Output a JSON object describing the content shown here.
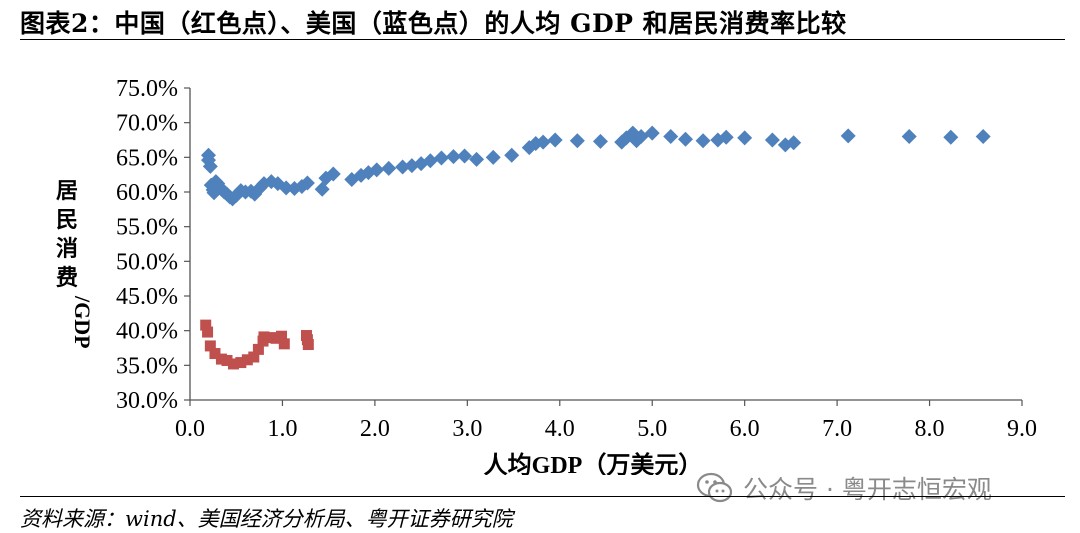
{
  "title": "图表2：中国（红色点）、美国（蓝色点）的人均 GDP 和居民消费率比较",
  "source": "资料来源：wind、美国经济分析局、粤开证券研究院",
  "watermark": {
    "text": "公众号 · 粤开志恒宏观",
    "icon": "wechat-logo-icon"
  },
  "colors": {
    "china": "#c0504d",
    "usa": "#4f81bd"
  },
  "chart_data": {
    "type": "scatter",
    "xlabel": "人均GDP（万美元）",
    "ylabel": "居民消费/GDP",
    "xlim": [
      0,
      9
    ],
    "ylim": [
      30,
      75
    ],
    "x_ticks": [
      "0.0",
      "1.0",
      "2.0",
      "3.0",
      "4.0",
      "5.0",
      "6.0",
      "7.0",
      "8.0",
      "9.0"
    ],
    "y_ticks": [
      "30.0%",
      "35.0%",
      "40.0%",
      "45.0%",
      "50.0%",
      "55.0%",
      "60.0%",
      "65.0%",
      "70.0%",
      "75.0%"
    ],
    "grid": false,
    "legend": "none",
    "series": [
      {
        "marker": "square",
        "color": "#c0504d",
        "points": [
          [
            0.17,
            40.8
          ],
          [
            0.19,
            39.8
          ],
          [
            0.22,
            37.8
          ],
          [
            0.27,
            36.7
          ],
          [
            0.34,
            35.9
          ],
          [
            0.4,
            35.7
          ],
          [
            0.47,
            35.2
          ],
          [
            0.55,
            35.4
          ],
          [
            0.62,
            35.8
          ],
          [
            0.69,
            36.2
          ],
          [
            0.74,
            37.3
          ],
          [
            0.79,
            38.5
          ],
          [
            0.8,
            39.1
          ],
          [
            0.87,
            39.0
          ],
          [
            0.93,
            38.9
          ],
          [
            0.99,
            39.2
          ],
          [
            1.02,
            38.1
          ],
          [
            1.26,
            39.3
          ],
          [
            1.27,
            38.7
          ],
          [
            1.28,
            38.0
          ]
        ]
      },
      {
        "marker": "diamond",
        "color": "#4f81bd",
        "points": [
          [
            0.2,
            65.3
          ],
          [
            0.2,
            64.6
          ],
          [
            0.22,
            63.7
          ],
          [
            0.23,
            61.0
          ],
          [
            0.25,
            60.3
          ],
          [
            0.26,
            59.9
          ],
          [
            0.28,
            61.5
          ],
          [
            0.3,
            61.2
          ],
          [
            0.32,
            60.7
          ],
          [
            0.34,
            60.4
          ],
          [
            0.37,
            60.0
          ],
          [
            0.4,
            59.7
          ],
          [
            0.43,
            59.3
          ],
          [
            0.46,
            59.0
          ],
          [
            0.5,
            59.5
          ],
          [
            0.55,
            60.2
          ],
          [
            0.6,
            60.0
          ],
          [
            0.66,
            60.1
          ],
          [
            0.7,
            59.7
          ],
          [
            0.75,
            60.5
          ],
          [
            0.8,
            61.2
          ],
          [
            0.88,
            61.5
          ],
          [
            0.95,
            61.2
          ],
          [
            1.04,
            60.6
          ],
          [
            1.13,
            60.5
          ],
          [
            1.21,
            60.8
          ],
          [
            1.27,
            61.3
          ],
          [
            1.43,
            60.4
          ],
          [
            1.47,
            62.0
          ],
          [
            1.55,
            62.6
          ],
          [
            1.75,
            61.8
          ],
          [
            1.85,
            62.4
          ],
          [
            1.93,
            62.8
          ],
          [
            2.02,
            63.2
          ],
          [
            2.15,
            63.4
          ],
          [
            2.3,
            63.6
          ],
          [
            2.4,
            63.8
          ],
          [
            2.5,
            64.1
          ],
          [
            2.6,
            64.5
          ],
          [
            2.72,
            64.9
          ],
          [
            2.85,
            65.1
          ],
          [
            2.97,
            65.2
          ],
          [
            3.1,
            64.7
          ],
          [
            3.28,
            65.0
          ],
          [
            3.48,
            65.3
          ],
          [
            3.67,
            66.4
          ],
          [
            3.74,
            67.0
          ],
          [
            3.82,
            67.2
          ],
          [
            3.95,
            67.5
          ],
          [
            4.19,
            67.4
          ],
          [
            4.44,
            67.3
          ],
          [
            4.67,
            67.2
          ],
          [
            4.72,
            67.8
          ],
          [
            4.79,
            68.5
          ],
          [
            4.83,
            67.4
          ],
          [
            4.88,
            68.0
          ],
          [
            5.0,
            68.5
          ],
          [
            5.2,
            68.0
          ],
          [
            5.36,
            67.6
          ],
          [
            5.55,
            67.4
          ],
          [
            5.71,
            67.5
          ],
          [
            5.8,
            67.9
          ],
          [
            6.0,
            67.8
          ],
          [
            6.3,
            67.5
          ],
          [
            6.44,
            66.8
          ],
          [
            6.53,
            67.1
          ],
          [
            7.12,
            68.1
          ],
          [
            7.78,
            68.0
          ],
          [
            8.23,
            67.9
          ],
          [
            8.58,
            68.0
          ]
        ]
      }
    ]
  }
}
